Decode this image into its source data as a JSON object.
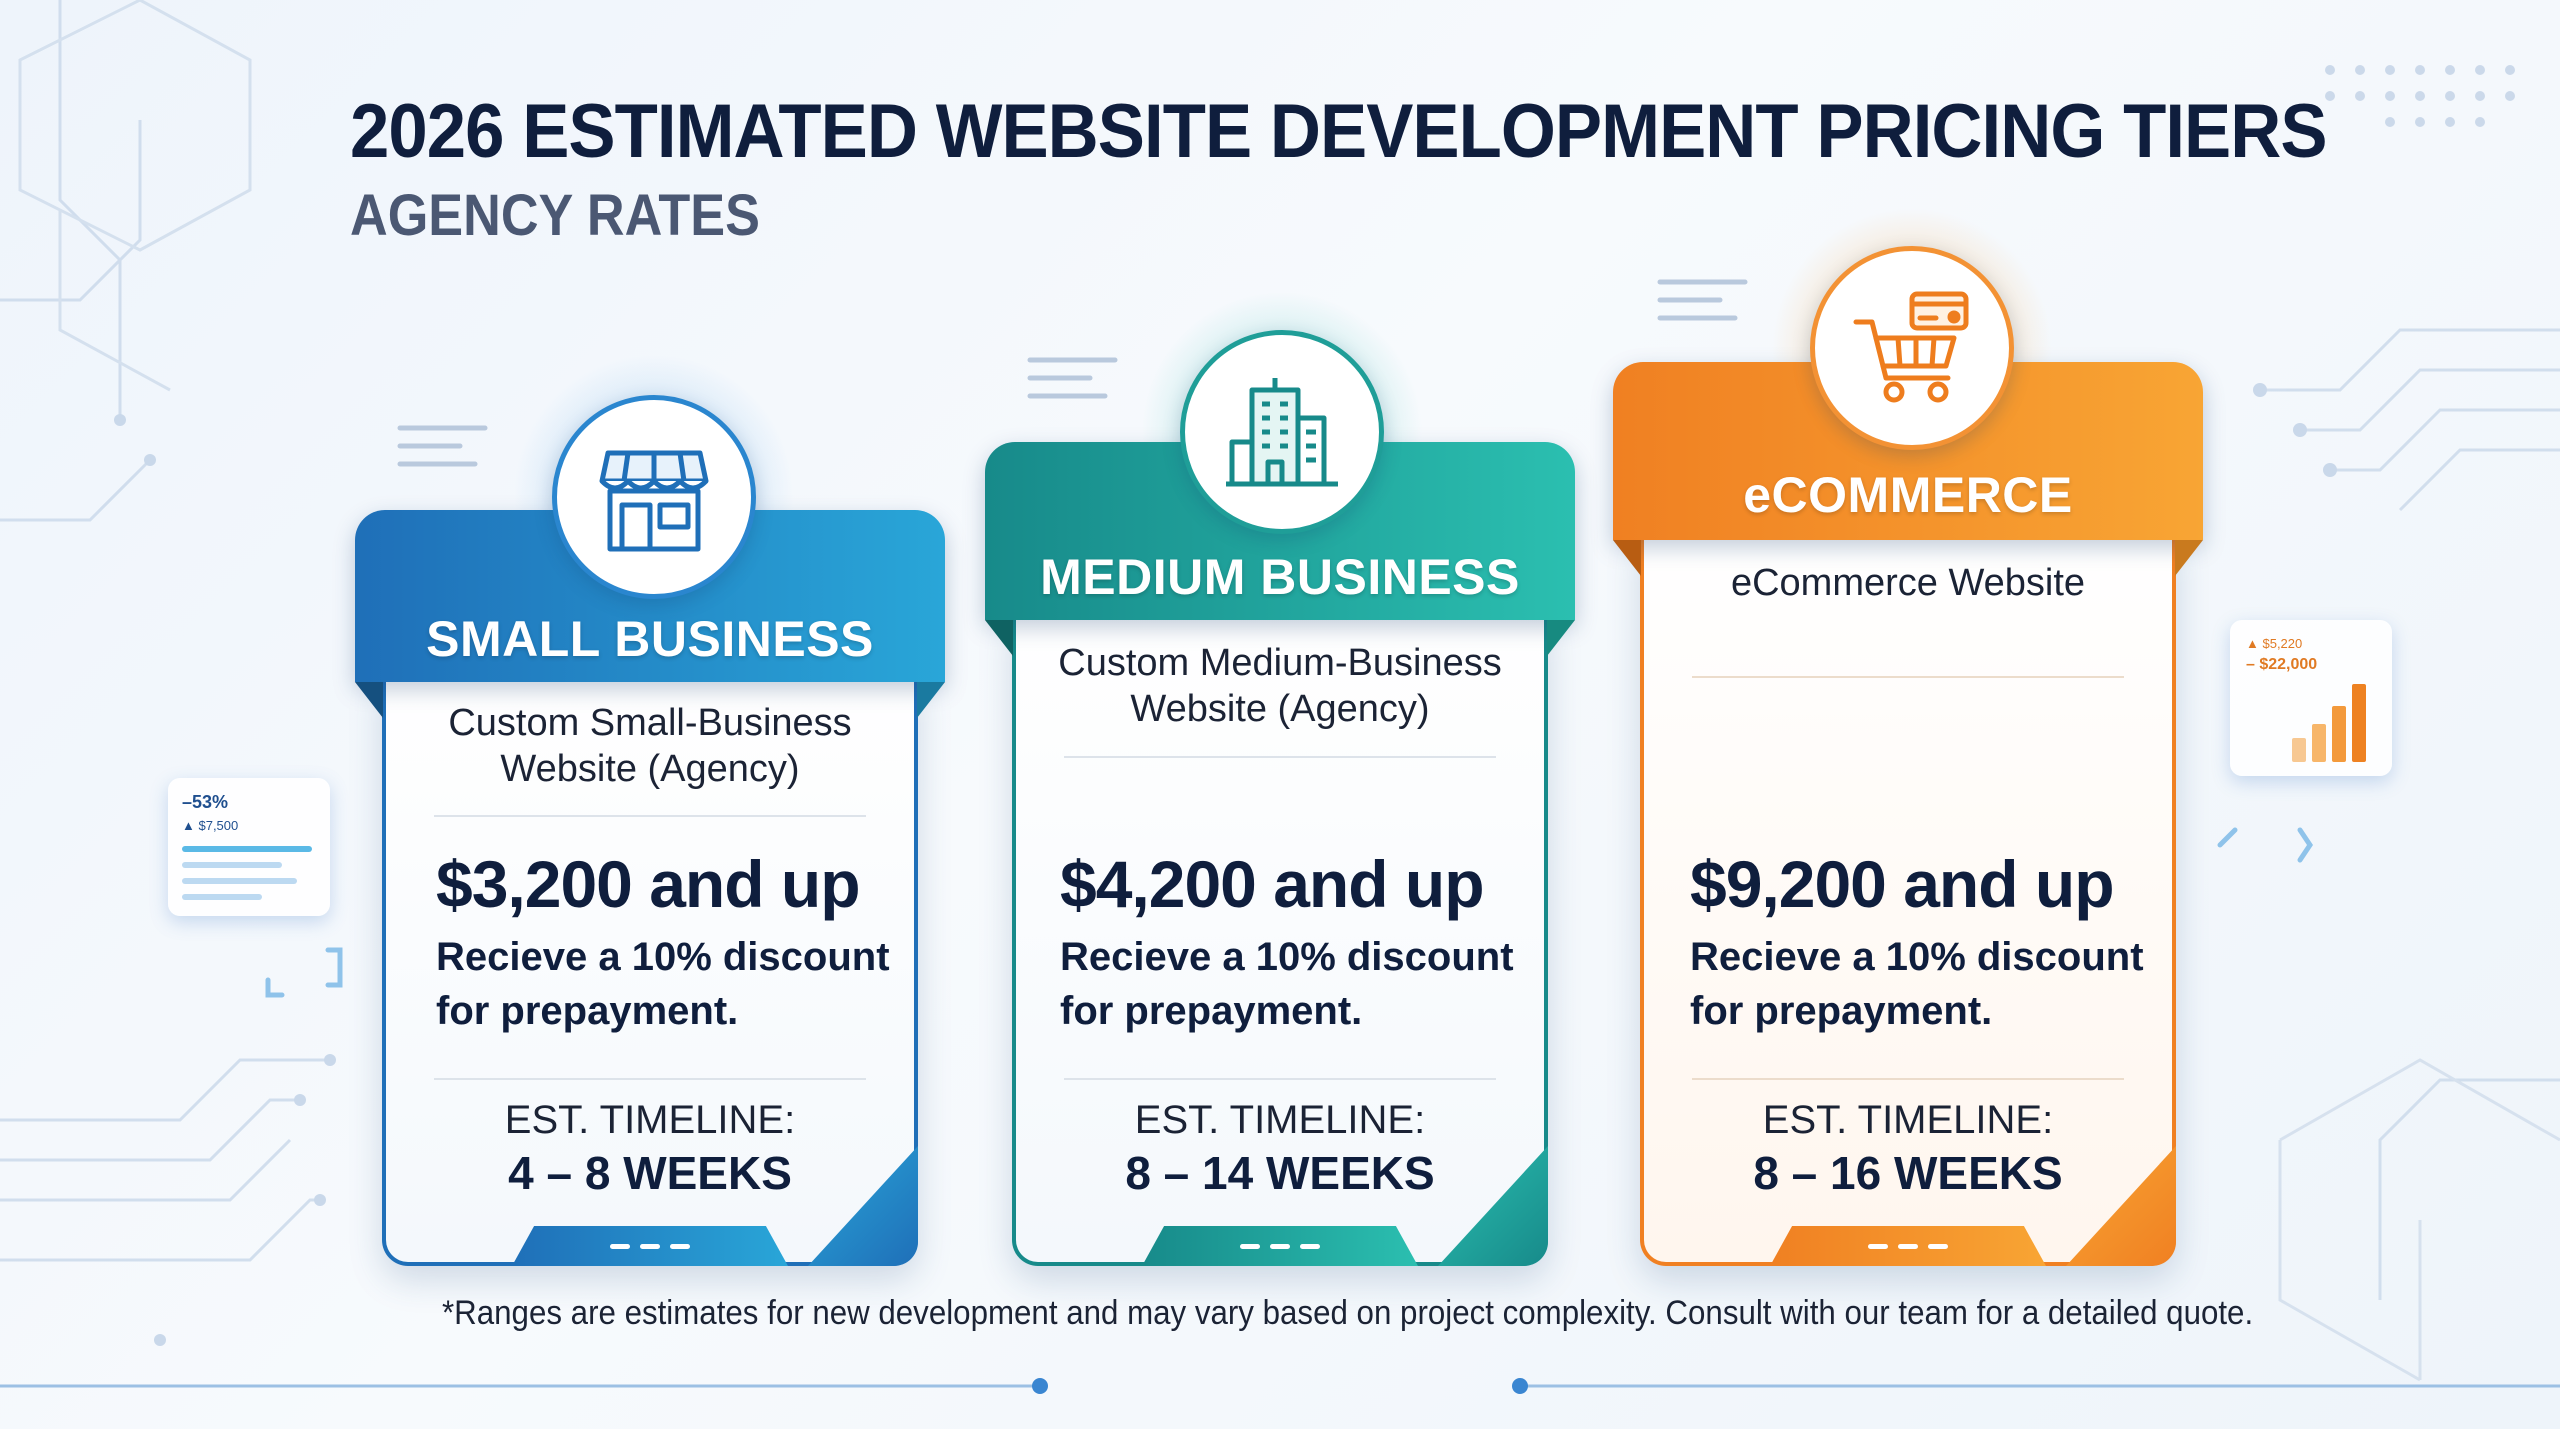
{
  "title": "2026 ESTIMATED WEBSITE DEVELOPMENT PRICING TIERS",
  "subtitle": "AGENCY RATES",
  "colors": {
    "small_top": "#1f6fb8",
    "small_bottom": "#29a6d8",
    "medium_top": "#178a8a",
    "medium_bottom": "#2bbfb0",
    "ecommerce_top": "#f08022",
    "ecommerce_bottom": "#f8a534",
    "navy": "#0f1e3d"
  },
  "tiers": [
    {
      "name": "SMALL BUSINESS",
      "icon": "storefront-icon",
      "description": "Custom Small-Business Website (Agency)",
      "price": "$3,200 and up",
      "discount": "Recieve a 10% discount for prepayment.",
      "timeline_label": "EST. TIMELINE:",
      "timeline": "4 – 8 WEEKS"
    },
    {
      "name": "MEDIUM BUSINESS",
      "icon": "office-building-icon",
      "description": "Custom Medium-Business Website (Agency)",
      "price": "$4,200 and up",
      "discount": "Recieve a 10% discount for prepayment.",
      "timeline_label": "EST. TIMELINE:",
      "timeline": "8 – 14 WEEKS"
    },
    {
      "name": "eCOMMERCE",
      "icon": "shopping-cart-icon",
      "description": "eCommerce Website",
      "price": "$9,200 and up",
      "discount": "Recieve a 10% discount for prepayment.",
      "timeline_label": "EST. TIMELINE:",
      "timeline": "8 – 16 WEEKS"
    }
  ],
  "footnote": "*Ranges are estimates for new development and may vary based on project complexity. Consult with our team for a detailed quote.",
  "decor": {
    "left_widget": {
      "value": "–53%",
      "sub": "▲ $7,500"
    },
    "right_widget": {
      "value": "– $22,000",
      "sub": "▲ $5,220"
    }
  }
}
